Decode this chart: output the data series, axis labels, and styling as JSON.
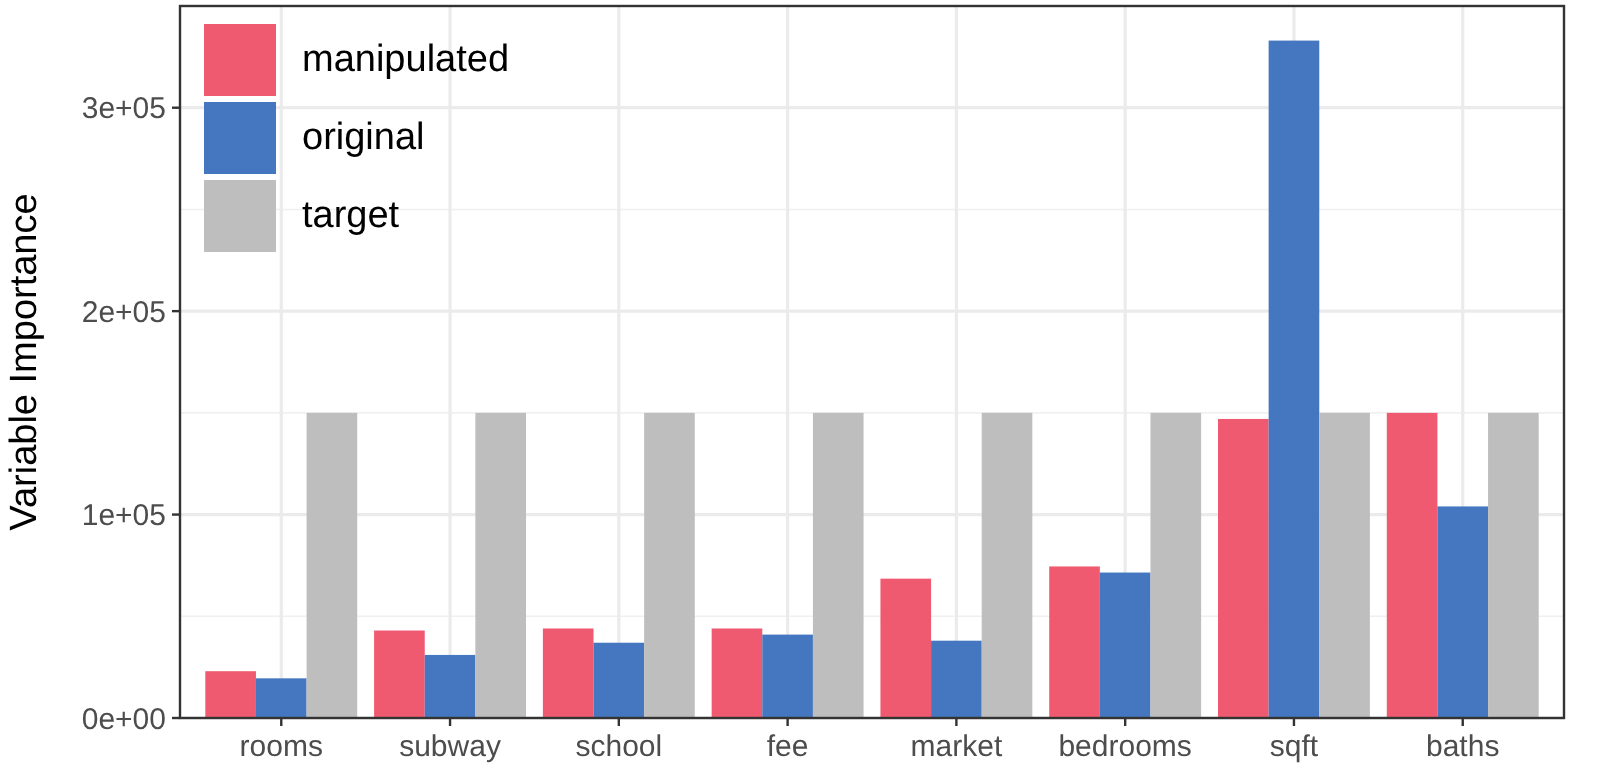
{
  "chart_data": {
    "type": "bar",
    "ylabel": "Variable Importance",
    "categories": [
      "rooms",
      "subway",
      "school",
      "fee",
      "market",
      "bedrooms",
      "sqft",
      "baths"
    ],
    "series": [
      {
        "name": "manipulated",
        "color": "#ef5a70",
        "values": [
          23000,
          43000,
          44000,
          44000,
          68500,
          74500,
          147000,
          150000
        ]
      },
      {
        "name": "original",
        "color": "#4477bf",
        "values": [
          19500,
          31000,
          37000,
          41000,
          38000,
          71500,
          333000,
          104000
        ]
      },
      {
        "name": "target",
        "color": "#bebebe",
        "values": [
          150000,
          150000,
          150000,
          150000,
          150000,
          150000,
          150000,
          150000
        ]
      }
    ],
    "ylim": [
      0,
      350000
    ],
    "yticks": [
      {
        "value": 0,
        "label": "0e+00"
      },
      {
        "value": 100000,
        "label": "1e+05"
      },
      {
        "value": 200000,
        "label": "2e+05"
      },
      {
        "value": 300000,
        "label": "3e+05"
      }
    ],
    "grid": true,
    "legend": "top left"
  }
}
